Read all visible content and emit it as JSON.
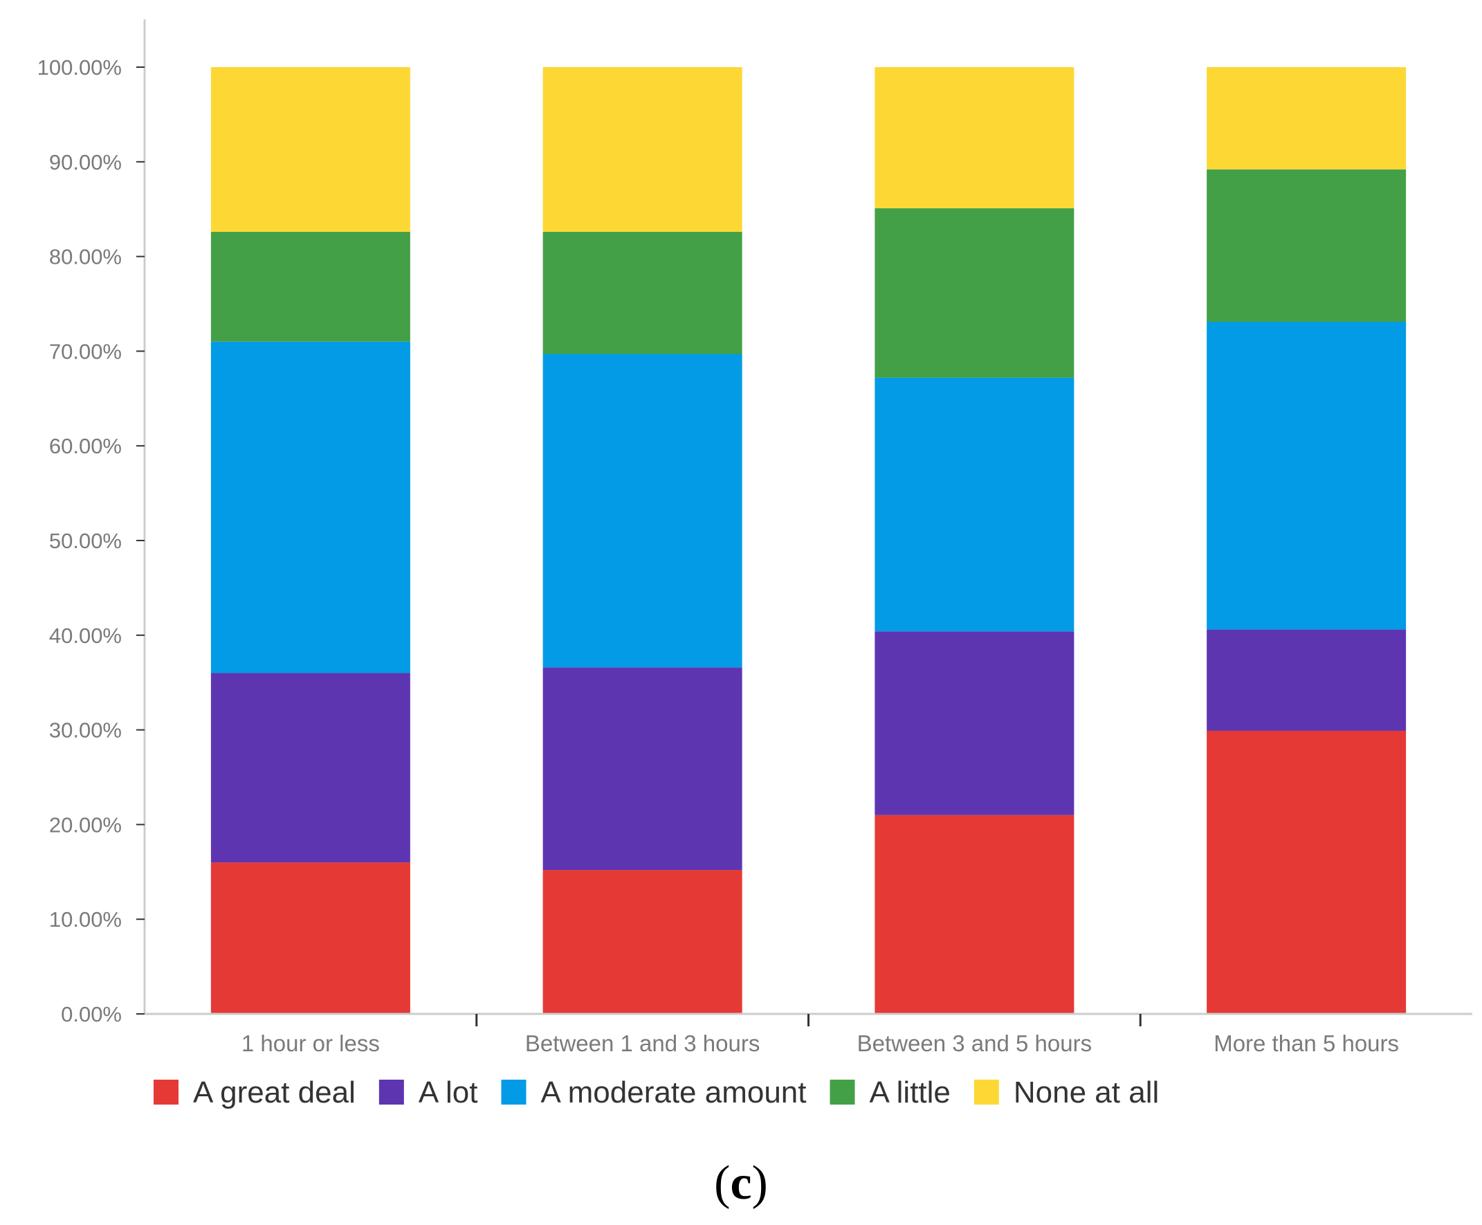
{
  "chart_data": {
    "type": "bar",
    "stacked": true,
    "categories": [
      "1 hour or less",
      "Between 1 and 3 hours",
      "Between 3 and 5 hours",
      "More than 5 hours"
    ],
    "series": [
      {
        "name": "A great deal",
        "color": "#e53935",
        "values": [
          16.0,
          15.2,
          21.0,
          29.9
        ]
      },
      {
        "name": "A lot",
        "color": "#5e35b1",
        "values": [
          20.0,
          21.4,
          19.4,
          10.7
        ]
      },
      {
        "name": "A moderate amount",
        "color": "#039be5",
        "values": [
          35.0,
          33.1,
          26.8,
          32.5
        ]
      },
      {
        "name": "A little",
        "color": "#43a047",
        "values": [
          11.6,
          12.9,
          17.9,
          16.1
        ]
      },
      {
        "name": "None at all",
        "color": "#fdd835",
        "values": [
          17.4,
          17.4,
          14.9,
          10.8
        ]
      }
    ],
    "yticks": [
      "0.00%",
      "10.00%",
      "20.00%",
      "30.00%",
      "40.00%",
      "50.00%",
      "60.00%",
      "70.00%",
      "80.00%",
      "90.00%",
      "100.00%"
    ],
    "ylim": [
      0,
      100
    ],
    "xlabel": "",
    "ylabel": "",
    "legend_position": "bottom-left",
    "grid": false
  },
  "panel_label": {
    "open": "(",
    "letter": "c",
    "close": ")"
  },
  "colors": {
    "axis": "#cccccc",
    "tick_text": "#7a7a7a"
  }
}
